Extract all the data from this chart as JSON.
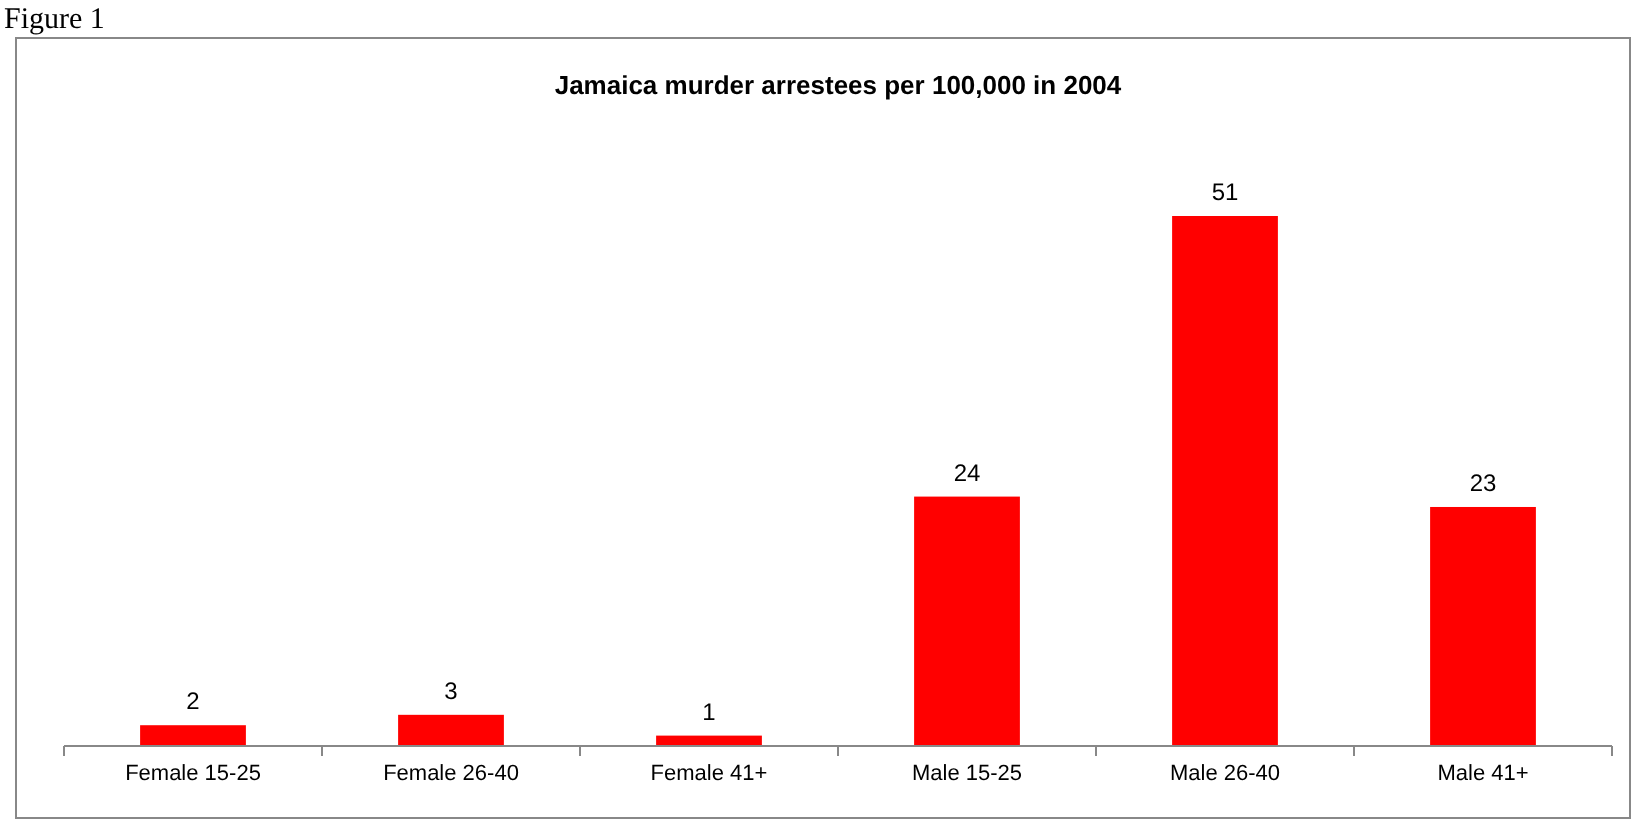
{
  "chart_data": {
    "type": "bar",
    "title": "Jamaica murder arrestees per 100,000 in 2004",
    "categories": [
      "Female 15-25",
      "Female 26-40",
      "Female 41+",
      "Male 15-25",
      "Male 26-40",
      "Male 41+"
    ],
    "values": [
      2,
      3,
      1,
      24,
      51,
      23
    ],
    "color": "#ff0000",
    "data_labels": true,
    "annotations": [
      "Figure 1"
    ]
  }
}
